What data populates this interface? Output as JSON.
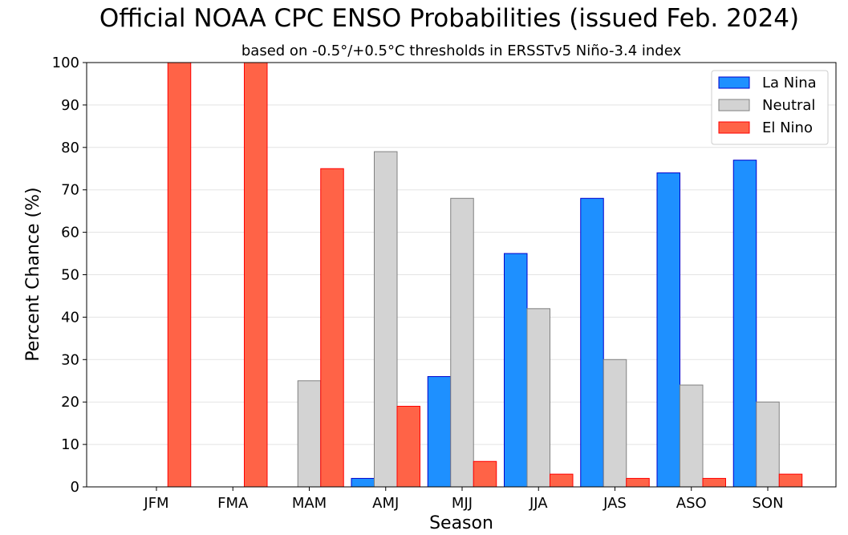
{
  "chart_data": {
    "type": "bar",
    "title": "Official NOAA CPC ENSO Probabilities (issued Feb. 2024)",
    "subtitle": "based on -0.5°/+0.5°C thresholds in ERSSTv5 Niño-3.4 index",
    "xlabel": "Season",
    "ylabel": "Percent Chance (%)",
    "ylim": [
      0,
      100
    ],
    "yticks": [
      0,
      10,
      20,
      30,
      40,
      50,
      60,
      70,
      80,
      90,
      100
    ],
    "grid": true,
    "legend_position": "top-right",
    "categories": [
      "JFM",
      "FMA",
      "MAM",
      "AMJ",
      "MJJ",
      "JJA",
      "JAS",
      "ASO",
      "SON"
    ],
    "series": [
      {
        "name": "La Nina",
        "color": "#1e90ff",
        "edge": "#0000cd",
        "values": [
          0,
          0,
          0,
          2,
          26,
          55,
          68,
          74,
          77
        ]
      },
      {
        "name": "Neutral",
        "color": "#d3d3d3",
        "edge": "#808080",
        "values": [
          0,
          0,
          25,
          79,
          68,
          42,
          30,
          24,
          20
        ]
      },
      {
        "name": "El Nino",
        "color": "#ff6347",
        "edge": "#ff0000",
        "values": [
          100,
          100,
          75,
          19,
          6,
          3,
          2,
          2,
          3
        ]
      }
    ]
  }
}
